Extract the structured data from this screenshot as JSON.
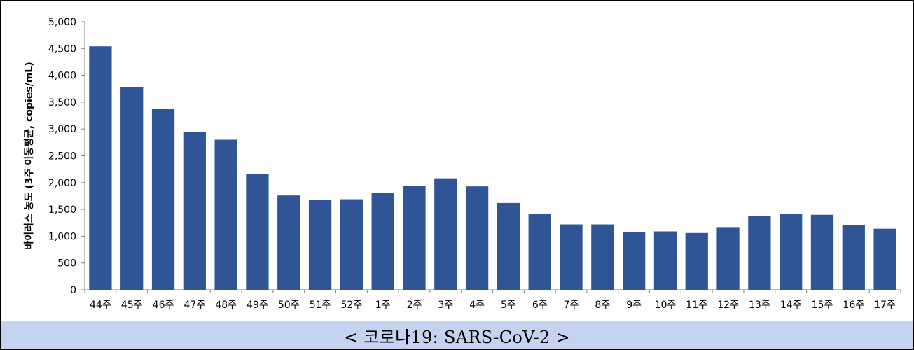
{
  "chart_data": {
    "type": "bar",
    "title": "",
    "xlabel": "",
    "ylabel": "바이러스 농도 (3주 이동평균, copies/mL)",
    "ylim": [
      0,
      5000
    ],
    "yticks": [
      "0",
      "500",
      "1,000",
      "1,500",
      "2,000",
      "2,500",
      "3,000",
      "3,500",
      "4,000",
      "4,500",
      "5,000"
    ],
    "ytick_values": [
      0,
      500,
      1000,
      1500,
      2000,
      2500,
      3000,
      3500,
      4000,
      4500,
      5000
    ],
    "categories": [
      "44주",
      "45주",
      "46주",
      "47주",
      "48주",
      "49주",
      "50주",
      "51주",
      "52주",
      "1주",
      "2주",
      "3주",
      "4주",
      "5주",
      "6주",
      "7주",
      "8주",
      "9주",
      "10주",
      "11주",
      "12주",
      "13주",
      "14주",
      "15주",
      "16주",
      "17주"
    ],
    "values": [
      4540,
      3780,
      3370,
      2950,
      2800,
      2160,
      1760,
      1680,
      1690,
      1810,
      1940,
      2080,
      1930,
      1620,
      1420,
      1220,
      1220,
      1080,
      1090,
      1060,
      1170,
      1380,
      1420,
      1400,
      1210,
      1140
    ],
    "bar_color": "#2f5597",
    "grid": false,
    "legend": "none"
  },
  "caption": "< 코로나19:  SARS-CoV-2 >",
  "colors": {
    "bar": "#2f5597",
    "caption_background": "#c5d3f0",
    "border": "#000000"
  }
}
